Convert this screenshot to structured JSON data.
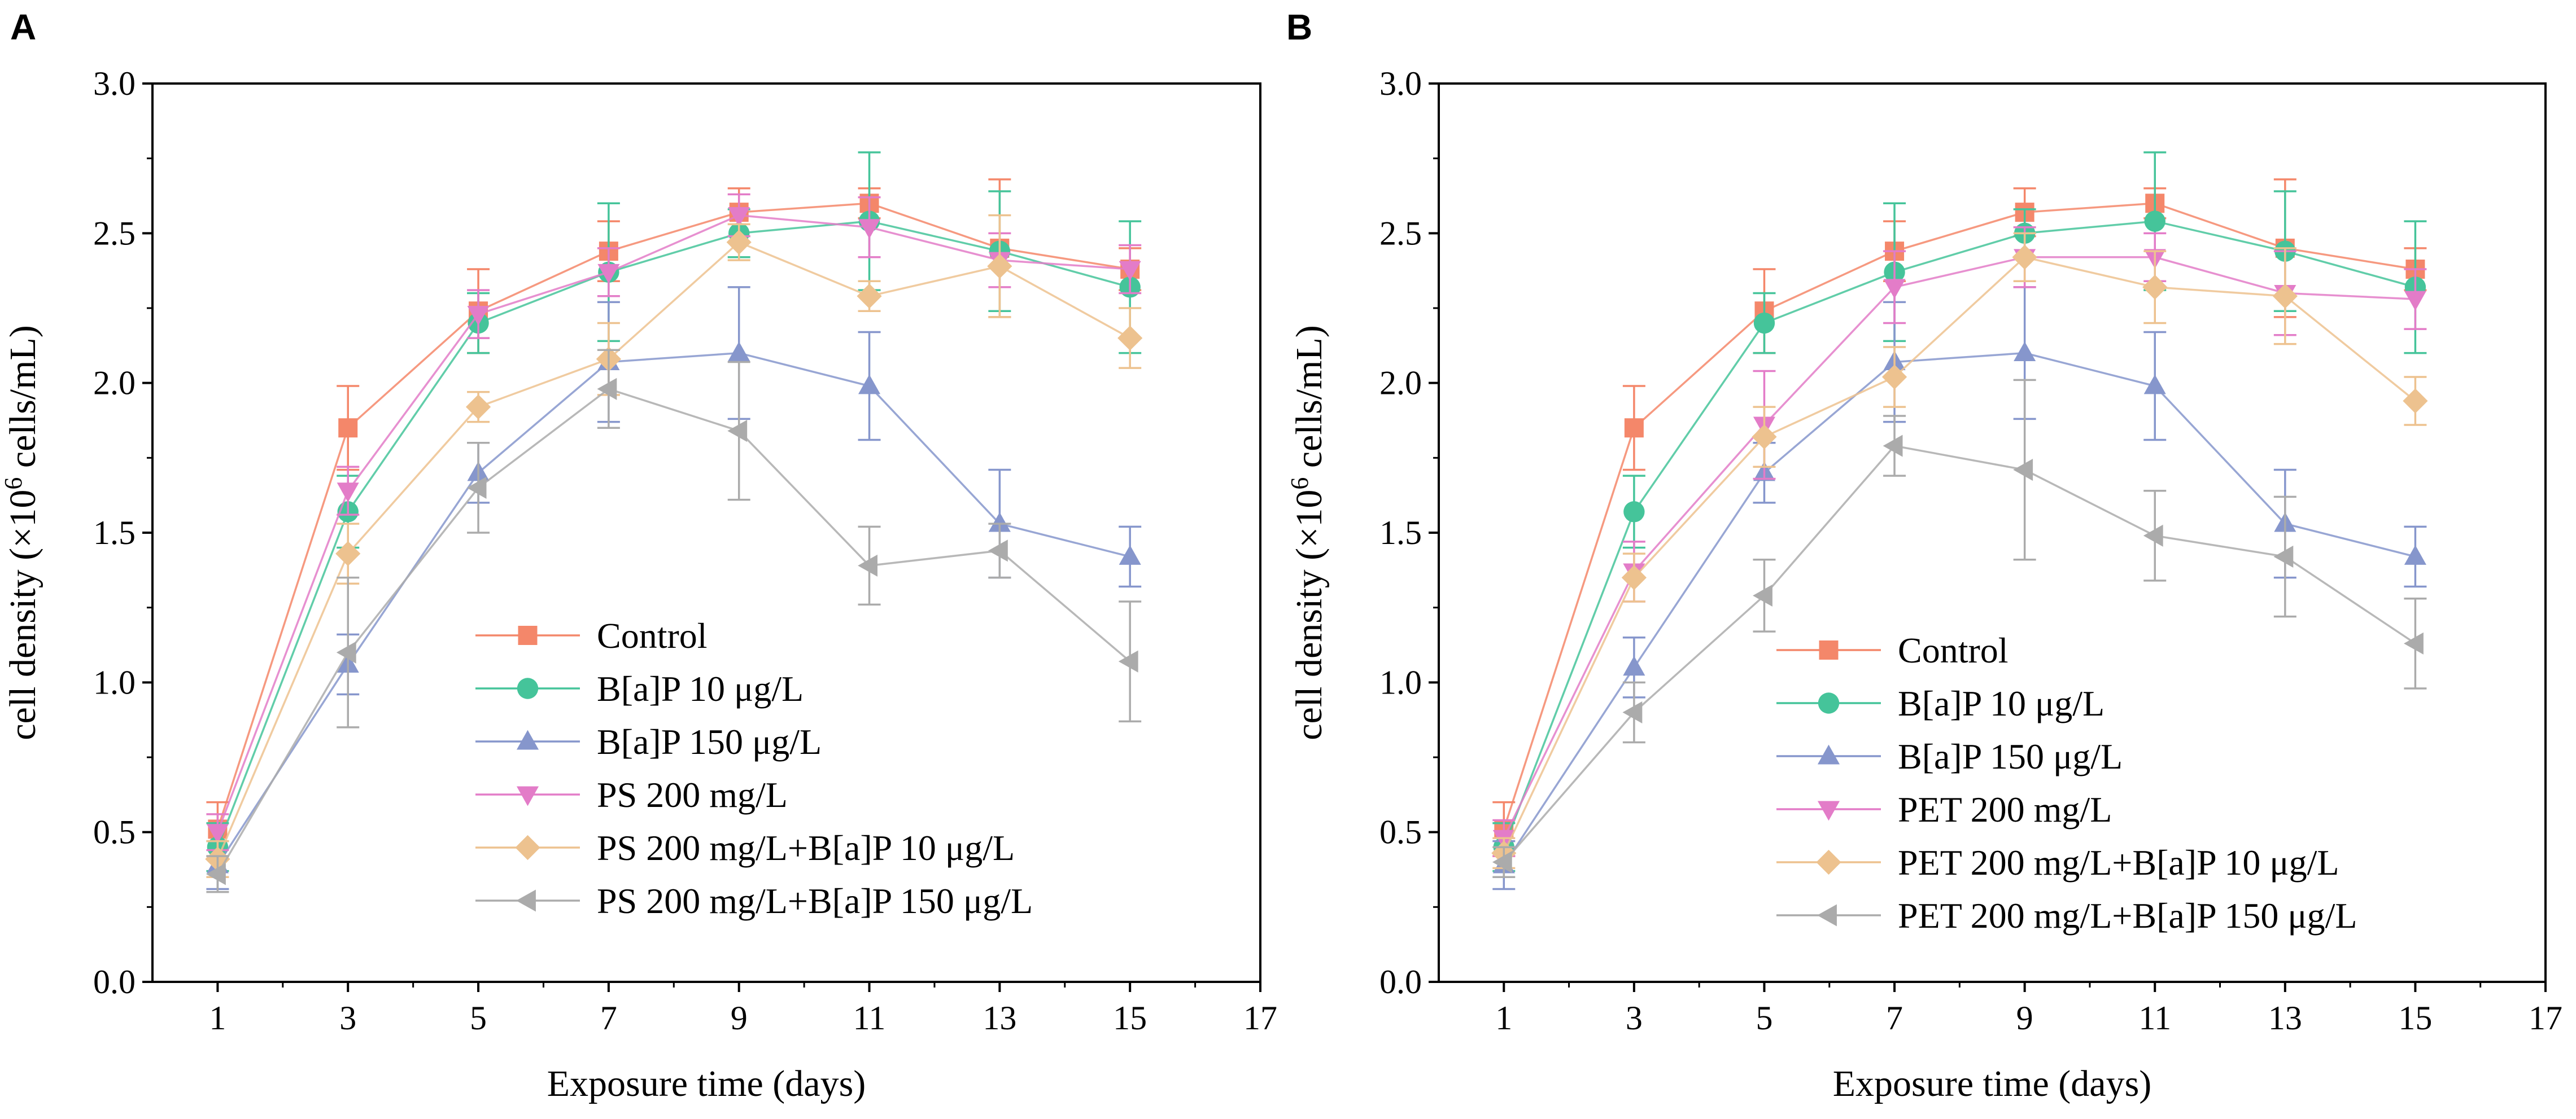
{
  "figure": {
    "panel_labels": [
      "A",
      "B"
    ]
  },
  "colors": {
    "Control": "#F4876A",
    "BaP10": "#45C49A",
    "BaP150": "#8696CC",
    "Plastic": "#E37CC8",
    "PlasticBaP10": "#EDC28F",
    "PlasticBaP150": "#ABABAB"
  },
  "chart_data": [
    {
      "type": "line",
      "panel": "A",
      "xlabel": "Exposure time (days)",
      "ylabel_prefix": "cell density (×10",
      "ylabel_sup": "6",
      "ylabel_suffix": " cells/mL)",
      "xlim": [
        0,
        17
      ],
      "ylim": [
        0,
        3.0
      ],
      "xticks": [
        "1",
        "3",
        "5",
        "7",
        "9",
        "11",
        "13",
        "15",
        "17"
      ],
      "yticks": [
        "0.0",
        "0.5",
        "1.0",
        "1.5",
        "2.0",
        "2.5",
        "3.0"
      ],
      "legend_position": "bottom-center",
      "x": [
        1,
        3,
        5,
        7,
        9,
        11,
        13,
        15
      ],
      "series": [
        {
          "name": "Control",
          "color_key": "Control",
          "marker": "square",
          "values": [
            0.51,
            1.85,
            2.24,
            2.44,
            2.57,
            2.6,
            2.45,
            2.38
          ],
          "errors": [
            0.09,
            0.14,
            0.14,
            0.1,
            0.08,
            0.05,
            0.23,
            0.07
          ]
        },
        {
          "name": "B[a]P 10 μg/L",
          "color_key": "BaP10",
          "marker": "circle",
          "values": [
            0.45,
            1.57,
            2.2,
            2.37,
            2.5,
            2.54,
            2.44,
            2.32
          ],
          "errors": [
            0.08,
            0.12,
            0.1,
            0.23,
            0.08,
            0.23,
            0.2,
            0.22
          ]
        },
        {
          "name": "B[a]P 150 μg/L",
          "color_key": "BaP150",
          "marker": "triangle-up",
          "values": [
            0.39,
            1.06,
            1.7,
            2.07,
            2.1,
            1.99,
            1.53,
            1.42
          ],
          "errors": [
            0.08,
            0.1,
            0.1,
            0.2,
            0.22,
            0.18,
            0.18,
            0.1
          ]
        },
        {
          "name": "PS 200 mg/L",
          "color_key": "Plastic",
          "marker": "triangle-down",
          "values": [
            0.5,
            1.64,
            2.23,
            2.37,
            2.56,
            2.52,
            2.41,
            2.38
          ],
          "errors": [
            0.06,
            0.08,
            0.08,
            0.08,
            0.07,
            0.1,
            0.09,
            0.08
          ]
        },
        {
          "name": "PS 200 mg/L+B[a]P 10 μg/L",
          "color_key": "PlasticBaP10",
          "marker": "diamond",
          "values": [
            0.41,
            1.43,
            1.92,
            2.08,
            2.47,
            2.29,
            2.39,
            2.15
          ],
          "errors": [
            0.06,
            0.1,
            0.05,
            0.12,
            0.06,
            0.05,
            0.17,
            0.1
          ]
        },
        {
          "name": "PS 200 mg/L+B[a]P 150 μg/L",
          "color_key": "PlasticBaP150",
          "marker": "triangle-left",
          "values": [
            0.36,
            1.1,
            1.65,
            1.98,
            1.84,
            1.39,
            1.44,
            1.07
          ],
          "errors": [
            0.06,
            0.25,
            0.15,
            0.13,
            0.23,
            0.13,
            0.09,
            0.2
          ]
        }
      ]
    },
    {
      "type": "line",
      "panel": "B",
      "xlabel": "Exposure time (days)",
      "ylabel_prefix": "cell density (×10",
      "ylabel_sup": "6",
      "ylabel_suffix": " cells/mL)",
      "xlim": [
        0,
        17
      ],
      "ylim": [
        0,
        3.0
      ],
      "xticks": [
        "1",
        "3",
        "5",
        "7",
        "9",
        "11",
        "13",
        "15",
        "17"
      ],
      "yticks": [
        "0.0",
        "0.5",
        "1.0",
        "1.5",
        "2.0",
        "2.5",
        "3.0"
      ],
      "legend_position": "bottom-center",
      "x": [
        1,
        3,
        5,
        7,
        9,
        11,
        13,
        15
      ],
      "series": [
        {
          "name": "Control",
          "color_key": "Control",
          "marker": "square",
          "values": [
            0.51,
            1.85,
            2.24,
            2.44,
            2.57,
            2.6,
            2.45,
            2.38
          ],
          "errors": [
            0.09,
            0.14,
            0.14,
            0.1,
            0.08,
            0.05,
            0.23,
            0.07
          ]
        },
        {
          "name": "B[a]P 10 μg/L",
          "color_key": "BaP10",
          "marker": "circle",
          "values": [
            0.45,
            1.57,
            2.2,
            2.37,
            2.5,
            2.54,
            2.44,
            2.32
          ],
          "errors": [
            0.08,
            0.12,
            0.1,
            0.23,
            0.08,
            0.23,
            0.2,
            0.22
          ]
        },
        {
          "name": "B[a]P 150 μg/L",
          "color_key": "BaP150",
          "marker": "triangle-up",
          "values": [
            0.39,
            1.05,
            1.7,
            2.07,
            2.1,
            1.99,
            1.53,
            1.42
          ],
          "errors": [
            0.08,
            0.1,
            0.1,
            0.2,
            0.22,
            0.18,
            0.18,
            0.1
          ]
        },
        {
          "name": "PET 200 mg/L",
          "color_key": "Plastic",
          "marker": "triangle-down",
          "values": [
            0.48,
            1.37,
            1.86,
            2.32,
            2.42,
            2.42,
            2.3,
            2.28
          ],
          "errors": [
            0.06,
            0.1,
            0.18,
            0.12,
            0.1,
            0.08,
            0.14,
            0.1
          ]
        },
        {
          "name": "PET 200 mg/L+B[a]P 10 μg/L",
          "color_key": "PlasticBaP10",
          "marker": "diamond",
          "values": [
            0.43,
            1.35,
            1.82,
            2.02,
            2.42,
            2.32,
            2.29,
            1.94
          ],
          "errors": [
            0.05,
            0.08,
            0.1,
            0.1,
            0.08,
            0.12,
            0.16,
            0.08
          ]
        },
        {
          "name": "PET 200 mg/L+B[a]P 150 μg/L",
          "color_key": "PlasticBaP150",
          "marker": "triangle-left",
          "values": [
            0.4,
            0.9,
            1.29,
            1.79,
            1.71,
            1.49,
            1.42,
            1.13
          ],
          "errors": [
            0.05,
            0.1,
            0.12,
            0.1,
            0.3,
            0.15,
            0.2,
            0.15
          ]
        }
      ]
    }
  ]
}
